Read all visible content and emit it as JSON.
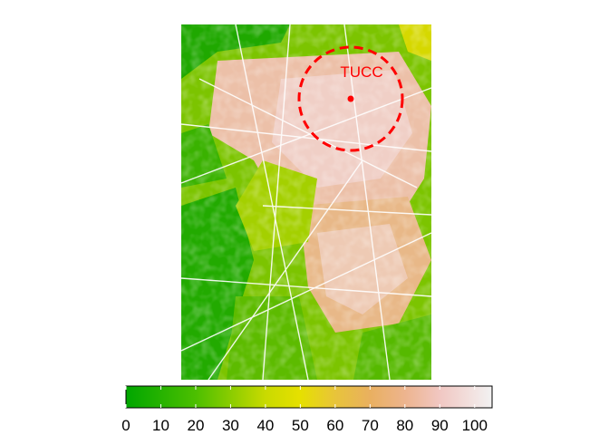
{
  "map": {
    "poi_label": "TUCC",
    "poi_color": "#ff0000",
    "background_color": "#ffffff"
  },
  "legend": {
    "min": 0,
    "max": 105,
    "ticks": [
      0,
      10,
      20,
      30,
      40,
      50,
      60,
      70,
      80,
      90,
      100
    ],
    "tick_labels": [
      "0",
      "10",
      "20",
      "30",
      "40",
      "50",
      "60",
      "70",
      "80",
      "90",
      "100"
    ],
    "color_stops": [
      {
        "value": 0,
        "color": "#00a600"
      },
      {
        "value": 20,
        "color": "#4cbf00"
      },
      {
        "value": 40,
        "color": "#c9da00"
      },
      {
        "value": 50,
        "color": "#e6e000"
      },
      {
        "value": 60,
        "color": "#e8c43a"
      },
      {
        "value": 70,
        "color": "#e9b060"
      },
      {
        "value": 80,
        "color": "#edb48e"
      },
      {
        "value": 90,
        "color": "#f1c7c2"
      },
      {
        "value": 105,
        "color": "#f2f2f2"
      }
    ]
  }
}
